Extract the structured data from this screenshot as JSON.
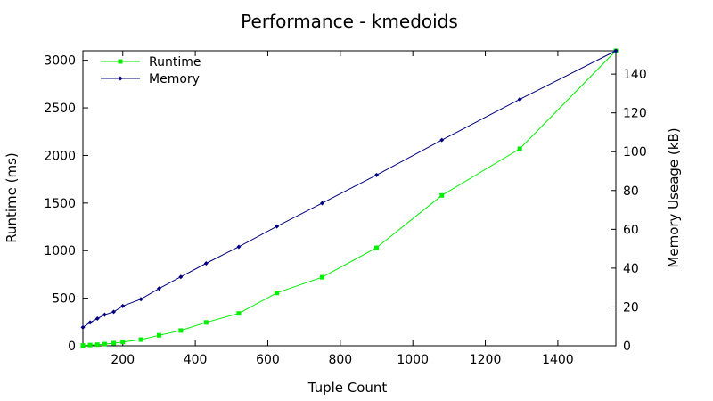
{
  "chart_data": {
    "type": "line",
    "title": "Performance - kmedoids",
    "xlabel": "Tuple Count",
    "ylabel": "Runtime (ms)",
    "y2label": "Memory Useage (kB)",
    "xlim": [
      90,
      1560
    ],
    "ylim": [
      0,
      3100
    ],
    "y2lim": [
      0,
      152
    ],
    "xticks": [
      200,
      400,
      600,
      800,
      1000,
      1200,
      1400
    ],
    "yticks": [
      0,
      500,
      1000,
      1500,
      2000,
      2500,
      3000
    ],
    "y2ticks": [
      0,
      20,
      40,
      60,
      80,
      100,
      120,
      140
    ],
    "grid": false,
    "legend_position": "top-left",
    "series": [
      {
        "name": "Runtime",
        "axis": "left",
        "color": "#00ee00",
        "marker": "square",
        "x": [
          90,
          110,
          130,
          150,
          175,
          200,
          250,
          300,
          360,
          430,
          520,
          625,
          750,
          900,
          1080,
          1295,
          1560
        ],
        "y": [
          3,
          8,
          12,
          18,
          28,
          40,
          65,
          110,
          160,
          245,
          340,
          555,
          720,
          1030,
          1580,
          2070,
          3100
        ]
      },
      {
        "name": "Memory",
        "axis": "right",
        "color": "#000080",
        "marker": "diamond",
        "x": [
          90,
          110,
          130,
          150,
          175,
          200,
          250,
          300,
          360,
          430,
          520,
          625,
          750,
          900,
          1080,
          1295,
          1560
        ],
        "y": [
          9.5,
          12,
          14,
          16,
          17.5,
          20.5,
          24,
          29.5,
          35.5,
          42.5,
          51,
          61.5,
          73.5,
          88,
          106,
          127,
          152
        ]
      }
    ]
  }
}
